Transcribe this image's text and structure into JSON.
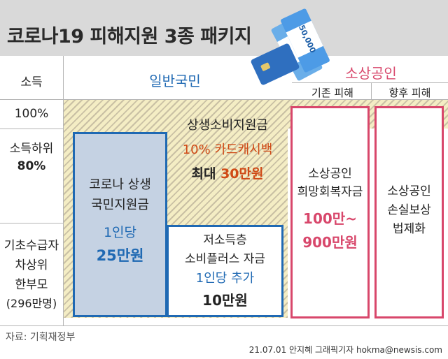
{
  "title": "코로나19 피해지원 3종 패키지",
  "row_labels": {
    "income": "소득",
    "pct100": "100%",
    "lower_line1": "소득하위",
    "lower_line2": "80%",
    "basic_line1": "기초수급자",
    "basic_line2": "차상위",
    "basic_line3": "한부모",
    "basic_line4": "(296만명)"
  },
  "column_headers": {
    "general_public": "일반국민",
    "small_business": "소상공인",
    "existing_damage": "기존 피해",
    "future_damage": "향후 피해"
  },
  "cashback": {
    "line1": "상생소비지원금",
    "line2": "10% 카드캐시백",
    "line3_prefix": "최대 ",
    "line3_amount": "30만원"
  },
  "national_grant": {
    "line1": "코로나 상생",
    "line2": "국민지원금",
    "line3": "1인당",
    "line4": "25만원"
  },
  "low_income_plus": {
    "line1": "저소득층",
    "line2": "소비플러스 자금",
    "line3": "1인당 추가",
    "line4": "10만원"
  },
  "hope_recovery": {
    "line1": "소상공인",
    "line2": "희망회복자금",
    "line3": "100만~",
    "line4": "900만원"
  },
  "loss_compensation": {
    "line1": "소상공인",
    "line2": "손실보상",
    "line3": "법제화"
  },
  "ticket_label": "50,000",
  "source": "자료: 기획재정부",
  "credit": "21.07.01 안지혜 그래픽기자 hokma@newsis.com",
  "colors": {
    "blue": "#1f69b3",
    "pink": "#d8476b",
    "orange": "#d04a16",
    "stripe": "#f4edc4"
  }
}
